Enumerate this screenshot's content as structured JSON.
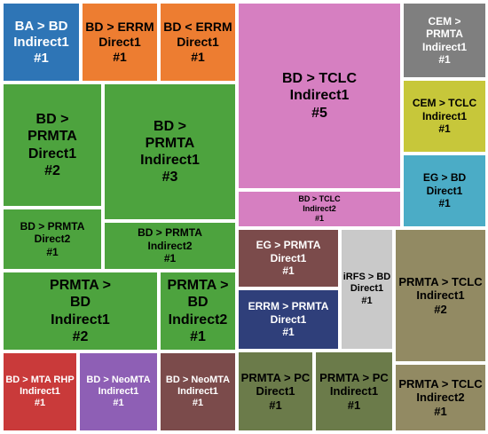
{
  "chart_data": {
    "type": "treemap",
    "nodes": [
      {
        "label": "BA > BD\nIndirect1\n#1",
        "color": "#2e75b6",
        "text_color": "#ffffff"
      },
      {
        "label": "BD > ERRM\nDirect1\n#1",
        "color": "#ed7d31",
        "text_color": "#000000"
      },
      {
        "label": "BD < ERRM\nDirect1\n#1",
        "color": "#ed7d31",
        "text_color": "#000000"
      },
      {
        "label": "BD > TCLC\nIndirect1\n#5",
        "color": "#d67fc1",
        "text_color": "#000000"
      },
      {
        "label": "BD > TCLC\nIndirect2\n#1",
        "color": "#d67fc1",
        "text_color": "#000000"
      },
      {
        "label": "CEM >\nPRMTA\nIndirect1\n#1",
        "color": "#7f7f7f",
        "text_color": "#ffffff"
      },
      {
        "label": "CEM > TCLC\nIndirect1\n#1",
        "color": "#c7c73a",
        "text_color": "#000000"
      },
      {
        "label": "EG > BD\nDirect1\n#1",
        "color": "#4bacc6",
        "text_color": "#000000"
      },
      {
        "label": "BD >\nPRMTA\nDirect1\n#2",
        "color": "#4da33e",
        "text_color": "#000000"
      },
      {
        "label": "BD >\nPRMTA\nIndirect1\n#3",
        "color": "#4da33e",
        "text_color": "#000000"
      },
      {
        "label": "BD > PRMTA\nDirect2\n#1",
        "color": "#4da33e",
        "text_color": "#000000"
      },
      {
        "label": "BD > PRMTA\nIndirect2\n#1",
        "color": "#4da33e",
        "text_color": "#000000"
      },
      {
        "label": "PRMTA >\nBD\nIndirect1\n#2",
        "color": "#4da33e",
        "text_color": "#000000"
      },
      {
        "label": "PRMTA >\nBD\nIndirect2\n#1",
        "color": "#4da33e",
        "text_color": "#000000"
      },
      {
        "label": "EG > PRMTA\nDirect1\n#1",
        "color": "#7b4b4b",
        "text_color": "#ffffff"
      },
      {
        "label": "iRFS > BD\nDirect1\n#1",
        "color": "#c9c9c9",
        "text_color": "#000000"
      },
      {
        "label": "PRMTA > TCLC\nIndirect1\n#2",
        "color": "#928a63",
        "text_color": "#000000"
      },
      {
        "label": "ERRM > PRMTA\nDirect1\n#1",
        "color": "#2f3f7a",
        "text_color": "#ffffff"
      },
      {
        "label": "BD > MTA RHP\nIndirect1\n#1",
        "color": "#c93a3a",
        "text_color": "#ffffff"
      },
      {
        "label": "BD > NeoMTA\nIndirect1\n#1",
        "color": "#8e5fb5",
        "text_color": "#ffffff"
      },
      {
        "label": "BD > NeoMTA\nIndirect1\n#1",
        "color": "#7b4b4b",
        "text_color": "#ffffff"
      },
      {
        "label": "PRMTA > PC\nDirect1\n#1",
        "color": "#6b7b4a",
        "text_color": "#000000"
      },
      {
        "label": "PRMTA > PC\nIndirect1\n#1",
        "color": "#6b7b4a",
        "text_color": "#000000"
      },
      {
        "label": "PRMTA > TCLC\nIndirect2\n#1",
        "color": "#928a63",
        "text_color": "#000000"
      }
    ]
  }
}
